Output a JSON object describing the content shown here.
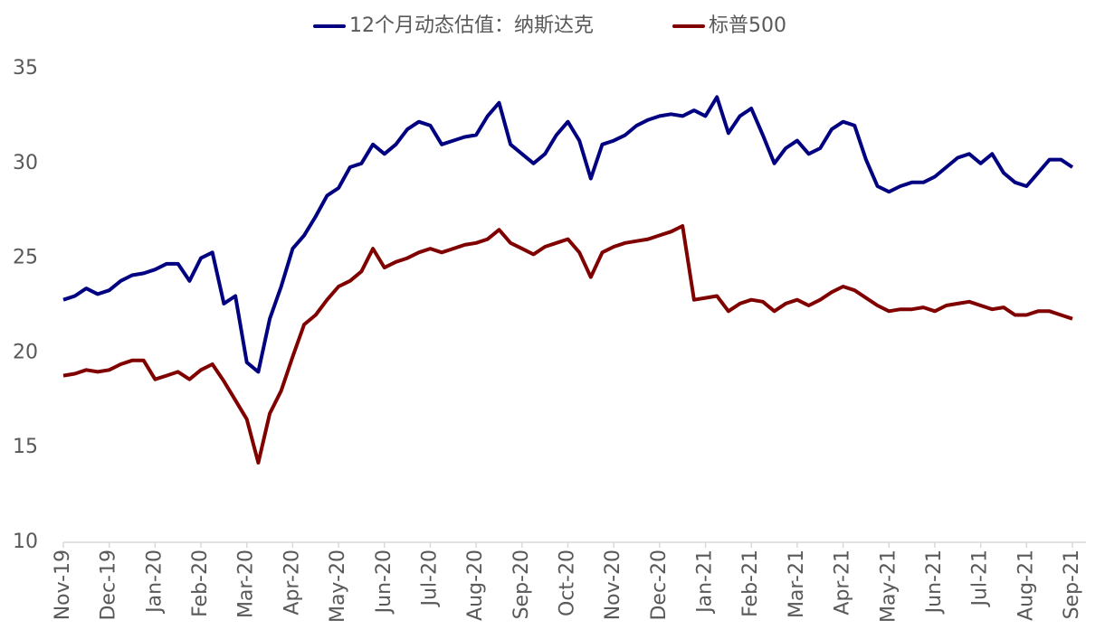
{
  "chart_data": {
    "type": "line",
    "categories": [
      "Nov-19",
      null,
      null,
      null,
      "Dec-19",
      null,
      null,
      null,
      "Jan-20",
      null,
      null,
      null,
      "Feb-20",
      null,
      null,
      null,
      "Mar-20",
      null,
      null,
      null,
      "Apr-20",
      null,
      null,
      null,
      "May-20",
      null,
      null,
      null,
      "Jun-20",
      null,
      null,
      null,
      "Jul-20",
      null,
      null,
      null,
      "Aug-20",
      null,
      null,
      null,
      "Sep-20",
      null,
      null,
      null,
      "Oct-20",
      null,
      null,
      null,
      "Nov-20",
      null,
      null,
      null,
      "Dec-20",
      null,
      null,
      null,
      "Jan-21",
      null,
      null,
      null,
      "Feb-21",
      null,
      null,
      null,
      "Mar-21",
      null,
      null,
      null,
      "Apr-21",
      null,
      null,
      null,
      "May-21",
      null,
      null,
      null,
      "Jun-21",
      null,
      null,
      null,
      "Jul-21",
      null,
      null,
      null,
      "Aug-21",
      null,
      null,
      null,
      "Sep-21"
    ],
    "series": [
      {
        "name": "12个月动态估值：纳斯达克",
        "color": "#000080",
        "values": [
          22.8,
          23.0,
          23.4,
          23.1,
          23.3,
          23.8,
          24.1,
          24.2,
          24.4,
          24.7,
          24.7,
          23.8,
          25.0,
          25.3,
          22.6,
          23.0,
          19.5,
          19.0,
          21.8,
          23.5,
          25.5,
          26.2,
          27.2,
          28.3,
          28.7,
          29.8,
          30.0,
          31.0,
          30.5,
          31.0,
          31.8,
          32.2,
          32.0,
          31.0,
          31.2,
          31.4,
          31.5,
          32.5,
          33.2,
          31.0,
          30.5,
          30.0,
          30.5,
          31.5,
          32.2,
          31.2,
          29.2,
          31.0,
          31.2,
          31.5,
          32.0,
          32.3,
          32.5,
          32.6,
          32.5,
          32.8,
          32.5,
          33.5,
          31.6,
          32.5,
          32.9,
          31.5,
          30.0,
          30.8,
          31.2,
          30.5,
          30.8,
          31.8,
          32.2,
          32.0,
          30.2,
          28.8,
          28.5,
          28.8,
          29.0,
          29.0,
          29.3,
          29.8,
          30.3,
          30.5,
          30.0,
          30.5,
          29.5,
          29.0,
          28.8,
          29.5,
          30.2,
          30.2,
          29.8
        ]
      },
      {
        "name": "标普500",
        "color": "#800000",
        "values": [
          18.8,
          18.9,
          19.1,
          19.0,
          19.1,
          19.4,
          19.6,
          19.6,
          18.6,
          18.8,
          19.0,
          18.6,
          19.1,
          19.4,
          18.5,
          17.5,
          16.5,
          14.2,
          16.8,
          18.0,
          19.8,
          21.5,
          22.0,
          22.8,
          23.5,
          23.8,
          24.3,
          25.5,
          24.5,
          24.8,
          25.0,
          25.3,
          25.5,
          25.3,
          25.5,
          25.7,
          25.8,
          26.0,
          26.5,
          25.8,
          25.5,
          25.2,
          25.6,
          25.8,
          26.0,
          25.3,
          24.0,
          25.3,
          25.6,
          25.8,
          25.9,
          26.0,
          26.2,
          26.4,
          26.7,
          22.8,
          22.9,
          23.0,
          22.2,
          22.6,
          22.8,
          22.7,
          22.2,
          22.6,
          22.8,
          22.5,
          22.8,
          23.2,
          23.5,
          23.3,
          22.9,
          22.5,
          22.2,
          22.3,
          22.3,
          22.4,
          22.2,
          22.5,
          22.6,
          22.7,
          22.5,
          22.3,
          22.4,
          22.0,
          22.0,
          22.2,
          22.2,
          22.0,
          21.8
        ]
      }
    ],
    "ylim": [
      10,
      35
    ],
    "yticks": [
      10,
      15,
      20,
      25,
      30,
      35
    ],
    "grid": false,
    "legend": "top"
  }
}
